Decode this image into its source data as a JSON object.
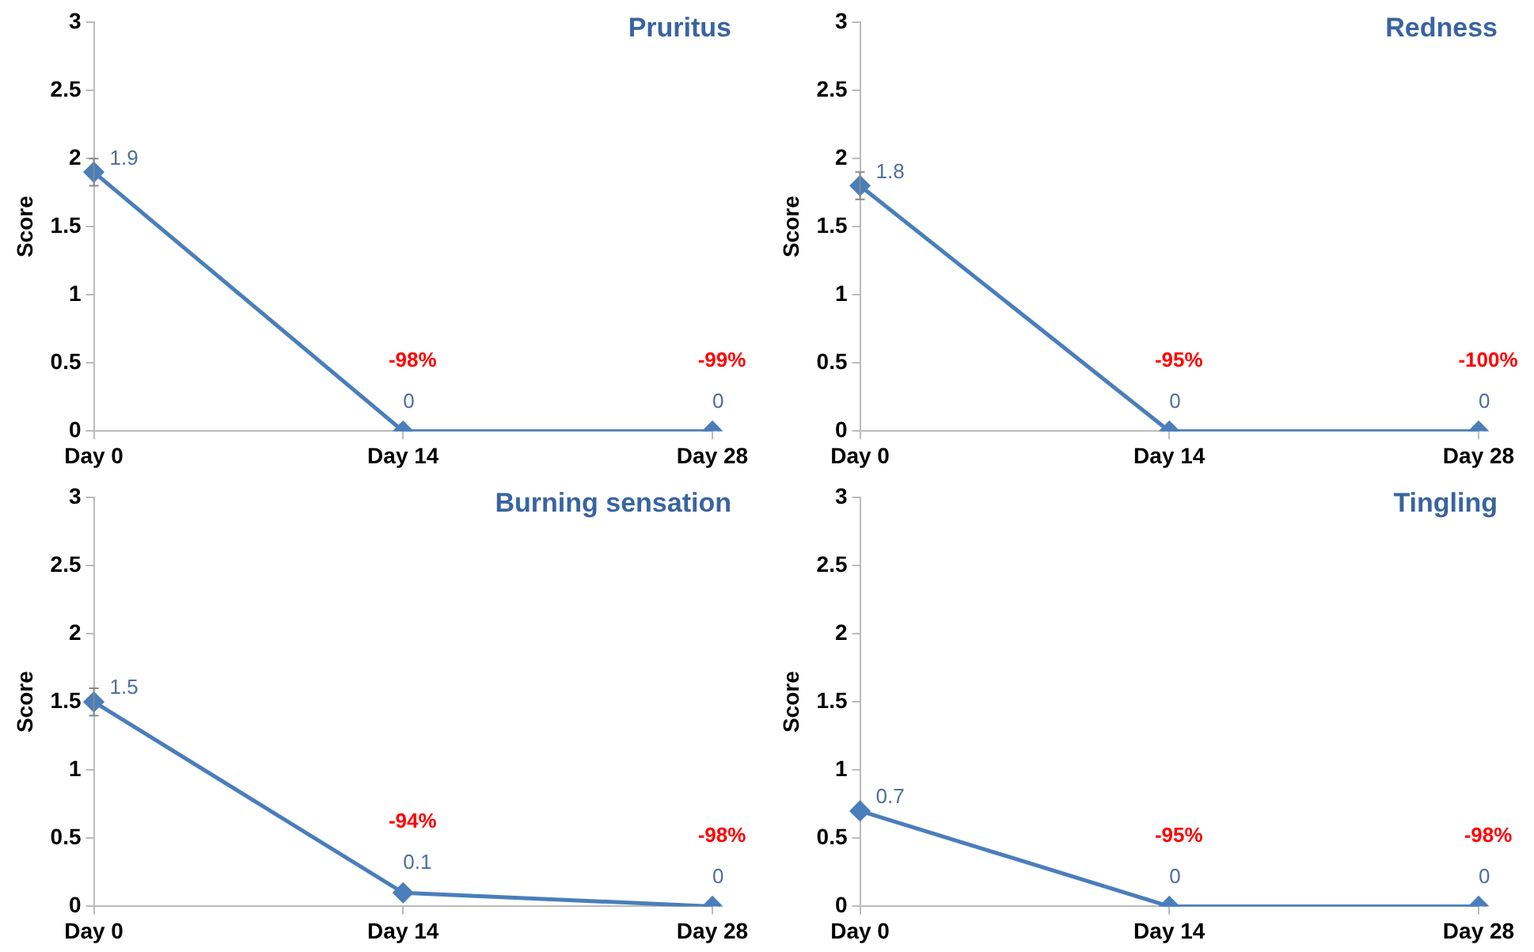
{
  "chart_data": [
    {
      "type": "line",
      "title": "Pruritus",
      "ylabel": "Score",
      "categories": [
        "Day 0",
        "Day 14",
        "Day 28"
      ],
      "series": [
        {
          "color": "#4a7ebb",
          "values": [
            1.9,
            0,
            0
          ],
          "errors": [
            0.1,
            null,
            null
          ]
        }
      ],
      "ylim": [
        0,
        3
      ],
      "yticks": [
        0,
        0.5,
        1,
        1.5,
        2,
        2.5,
        3
      ],
      "grid": false,
      "legend": false,
      "marker": "diamond",
      "line_style": "solid",
      "data_labels": true,
      "annotations": [
        {
          "text": "-98%",
          "x": "Day 14",
          "y": 0
        },
        {
          "text": "-99%",
          "x": "Day 28",
          "y": 0
        }
      ]
    },
    {
      "type": "line",
      "title": "Redness",
      "ylabel": "Score",
      "categories": [
        "Day 0",
        "Day 14",
        "Day 28"
      ],
      "series": [
        {
          "color": "#4a7ebb",
          "values": [
            1.8,
            0,
            0
          ],
          "errors": [
            0.1,
            null,
            null
          ]
        }
      ],
      "ylim": [
        0,
        3
      ],
      "yticks": [
        0,
        0.5,
        1,
        1.5,
        2,
        2.5,
        3
      ],
      "grid": false,
      "legend": false,
      "marker": "diamond",
      "line_style": "solid",
      "data_labels": true,
      "annotations": [
        {
          "text": "-95%",
          "x": "Day 14",
          "y": 0
        },
        {
          "text": "-100%",
          "x": "Day 28",
          "y": 0
        }
      ]
    },
    {
      "type": "line",
      "title": "Burning sensation",
      "ylabel": "Score",
      "categories": [
        "Day 0",
        "Day 14",
        "Day 28"
      ],
      "series": [
        {
          "color": "#4a7ebb",
          "values": [
            1.5,
            0.1,
            0
          ],
          "errors": [
            0.1,
            null,
            null
          ]
        }
      ],
      "ylim": [
        0,
        3
      ],
      "yticks": [
        0,
        0.5,
        1,
        1.5,
        2,
        2.5,
        3
      ],
      "grid": false,
      "legend": false,
      "marker": "diamond",
      "line_style": "solid",
      "data_labels": true,
      "annotations": [
        {
          "text": "-94%",
          "x": "Day 14",
          "y": 0.1
        },
        {
          "text": "-98%",
          "x": "Day 28",
          "y": 0
        }
      ]
    },
    {
      "type": "line",
      "title": "Tingling",
      "ylabel": "Score",
      "categories": [
        "Day 0",
        "Day 14",
        "Day 28"
      ],
      "series": [
        {
          "color": "#4a7ebb",
          "values": [
            0.7,
            0,
            0
          ]
        }
      ],
      "ylim": [
        0,
        3
      ],
      "yticks": [
        0,
        0.5,
        1,
        1.5,
        2,
        2.5,
        3
      ],
      "grid": false,
      "legend": false,
      "marker": "diamond",
      "line_style": "solid",
      "data_labels": true,
      "annotations": [
        {
          "text": "-95%",
          "x": "Day 14",
          "y": 0
        },
        {
          "text": "-98%",
          "x": "Day 28",
          "y": 0
        }
      ]
    }
  ]
}
